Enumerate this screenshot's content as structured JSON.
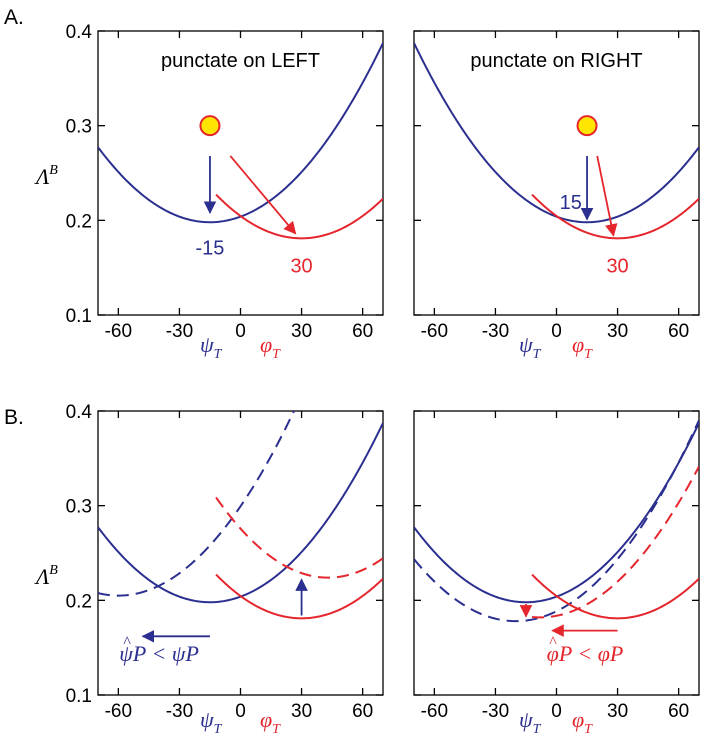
{
  "colors": {
    "blue": "#2b2f8f",
    "red": "#e5262d",
    "dot_fill": "#ffe600"
  },
  "row_labels": {
    "a": "A.",
    "b": "B."
  },
  "ylabel": {
    "main": "Λ",
    "sup": "B"
  },
  "xlabels": {
    "psi": "ψ",
    "phi": "φ",
    "sub": "T"
  },
  "chart_data": [
    {
      "id": "A-left",
      "type": "line",
      "title": "punctate on LEFT",
      "xlim": [
        -70,
        70
      ],
      "ylim": [
        0.1,
        0.4
      ],
      "xticks": [
        "-60",
        "-30",
        "0",
        "30",
        "60"
      ],
      "yticks": [
        "0.1",
        "0.2",
        "0.3",
        "0.4"
      ],
      "series": [
        {
          "color": "blue",
          "style": "solid",
          "min_x": -15,
          "min_y": 0.198,
          "curvature": 2.62e-05,
          "x_range": [
            -70,
            70
          ]
        },
        {
          "color": "red",
          "style": "solid",
          "min_x": 30,
          "min_y": 0.181,
          "curvature": 2.62e-05,
          "x_range": [
            -12,
            70
          ]
        }
      ],
      "dot": {
        "x": -15,
        "y": 0.3
      },
      "arrows": [
        {
          "color": "blue",
          "from": [
            -15,
            0.268
          ],
          "to": [
            -15,
            0.208
          ]
        },
        {
          "color": "red",
          "from": [
            -5,
            0.268
          ],
          "to": [
            27,
            0.186
          ]
        }
      ],
      "labels": [
        {
          "text": "-15",
          "x": -15,
          "y": 0.164,
          "color": "blue"
        },
        {
          "text": "30",
          "x": 30,
          "y": 0.145,
          "color": "red"
        }
      ]
    },
    {
      "id": "A-right",
      "type": "line",
      "title": "punctate on RIGHT",
      "xlim": [
        -70,
        70
      ],
      "ylim": [
        0.1,
        0.4
      ],
      "xticks": [
        "-60",
        "-30",
        "0",
        "30",
        "60"
      ],
      "yticks": [
        "0.1",
        "0.2",
        "0.3",
        "0.4"
      ],
      "series": [
        {
          "color": "blue",
          "style": "solid",
          "min_x": 15,
          "min_y": 0.198,
          "curvature": 2.62e-05,
          "x_range": [
            -70,
            70
          ]
        },
        {
          "color": "red",
          "style": "solid",
          "min_x": 30,
          "min_y": 0.181,
          "curvature": 2.62e-05,
          "x_range": [
            -12,
            70
          ]
        }
      ],
      "dot": {
        "x": 15,
        "y": 0.3
      },
      "arrows": [
        {
          "color": "blue",
          "from": [
            15,
            0.268
          ],
          "to": [
            15,
            0.201
          ]
        },
        {
          "color": "red",
          "from": [
            20,
            0.268
          ],
          "to": [
            28,
            0.184
          ]
        }
      ],
      "labels": [
        {
          "text": "15",
          "x": 7,
          "y": 0.212,
          "color": "blue"
        },
        {
          "text": "30",
          "x": 30,
          "y": 0.145,
          "color": "red"
        }
      ]
    },
    {
      "id": "B-left",
      "type": "line",
      "title": "",
      "xlim": [
        -70,
        70
      ],
      "ylim": [
        0.1,
        0.4
      ],
      "xticks": [
        "-60",
        "-30",
        "0",
        "30",
        "60"
      ],
      "yticks": [
        "0.1",
        "0.2",
        "0.3",
        "0.4"
      ],
      "series": [
        {
          "color": "blue",
          "style": "solid",
          "min_x": -15,
          "min_y": 0.198,
          "curvature": 2.62e-05,
          "x_range": [
            -70,
            70
          ]
        },
        {
          "color": "blue",
          "style": "dashed",
          "min_x": -60,
          "min_y": 0.205,
          "curvature": 2.62e-05,
          "x_range": [
            -70,
            70
          ]
        },
        {
          "color": "red",
          "style": "solid",
          "min_x": 30,
          "min_y": 0.181,
          "curvature": 2.62e-05,
          "x_range": [
            -12,
            70
          ]
        },
        {
          "color": "red",
          "style": "dashed",
          "min_x": 43,
          "min_y": 0.224,
          "curvature": 2.8e-05,
          "x_range": [
            -12,
            70
          ]
        }
      ],
      "arrows": [
        {
          "color": "blue",
          "from": [
            -15,
            0.162
          ],
          "to": [
            -48,
            0.162
          ]
        },
        {
          "color": "blue",
          "from": [
            30,
            0.184
          ],
          "to": [
            30,
            0.222
          ]
        }
      ],
      "labels": [
        {
          "text": "ψP < ψP",
          "x": -40,
          "y": 0.136,
          "color": "blue",
          "kind": "psi"
        }
      ]
    },
    {
      "id": "B-right",
      "type": "line",
      "title": "",
      "xlim": [
        -70,
        70
      ],
      "ylim": [
        0.1,
        0.4
      ],
      "xticks": [
        "-60",
        "-30",
        "0",
        "30",
        "60"
      ],
      "yticks": [
        "0.1",
        "0.2",
        "0.3",
        "0.4"
      ],
      "series": [
        {
          "color": "blue",
          "style": "solid",
          "min_x": -15,
          "min_y": 0.198,
          "curvature": 2.62e-05,
          "x_range": [
            -70,
            70
          ]
        },
        {
          "color": "blue",
          "style": "dashed",
          "min_x": -20,
          "min_y": 0.178,
          "curvature": 2.62e-05,
          "x_range": [
            -70,
            70
          ]
        },
        {
          "color": "red",
          "style": "solid",
          "min_x": 30,
          "min_y": 0.181,
          "curvature": 2.62e-05,
          "x_range": [
            -12,
            70
          ]
        },
        {
          "color": "red",
          "style": "dashed",
          "min_x": -8,
          "min_y": 0.182,
          "curvature": 2.62e-05,
          "x_range": [
            -12,
            70
          ]
        }
      ],
      "arrows": [
        {
          "color": "red",
          "from": [
            -15,
            0.196
          ],
          "to": [
            -15,
            0.183
          ]
        },
        {
          "color": "red",
          "from": [
            30,
            0.168
          ],
          "to": [
            -2,
            0.168
          ]
        }
      ],
      "labels": [
        {
          "text": "φP < φP",
          "x": 14,
          "y": 0.136,
          "color": "red",
          "kind": "phi"
        }
      ]
    }
  ]
}
